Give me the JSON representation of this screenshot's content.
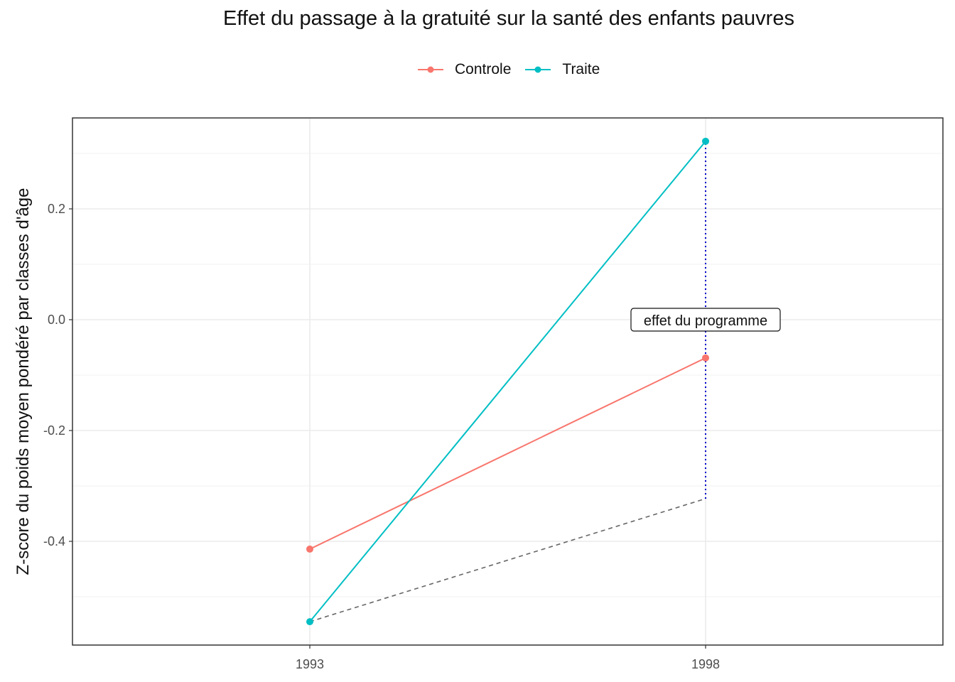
{
  "chart_data": {
    "type": "line",
    "title": "Effet du passage à la gratuité sur la santé des enfants pauvres",
    "xlabel": "",
    "ylabel": "Z-score  du poids moyen pondéré par classes d'âge",
    "categories": [
      "1993",
      "1998"
    ],
    "ylim": [
      -0.587,
      0.362
    ],
    "yticks": [
      0.2,
      0.0,
      -0.2,
      -0.4
    ],
    "ytick_labels": [
      "0.2",
      "0.0",
      "-0.2",
      "-0.4"
    ],
    "grid": true,
    "legend_position": "top",
    "series": [
      {
        "name": "Controle",
        "color": "#F8766D",
        "values": [
          -0.414,
          -0.069
        ]
      },
      {
        "name": "Traite",
        "color": "#00BFC4",
        "values": [
          -0.545,
          0.322
        ]
      }
    ],
    "counterfactual": {
      "style": "dashed",
      "color": "#666666",
      "values": [
        -0.545,
        -0.323
      ]
    },
    "effect_segment": {
      "style": "dotted",
      "color": "#0000CC",
      "x": "1998",
      "from": -0.323,
      "to": 0.322
    },
    "annotation": {
      "text": "effet du programme",
      "x": "1998",
      "y": 0.0
    }
  }
}
